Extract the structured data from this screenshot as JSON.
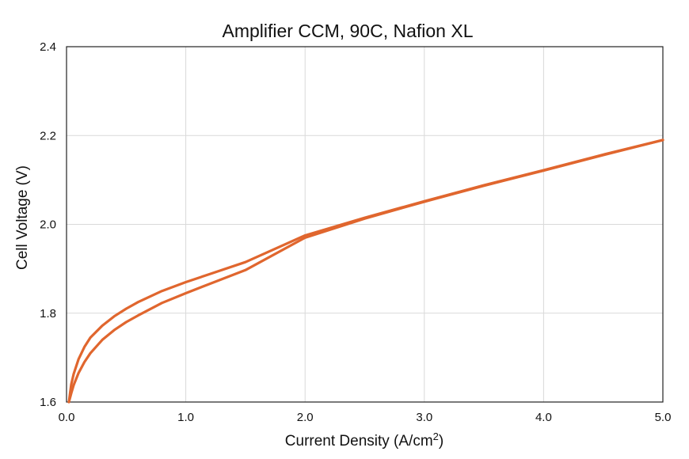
{
  "chart_data": {
    "type": "line",
    "title": "Amplifier CCM, 90C, Nafion XL",
    "xlabel": "Current Density (A/cm",
    "xlabel_sup": "2",
    "xlabel_end": ")",
    "ylabel": "Cell Voltage (V)",
    "xlim": [
      0,
      5
    ],
    "ylim": [
      1.6,
      2.4
    ],
    "xticks": [
      "0.0",
      "1.0",
      "2.0",
      "3.0",
      "4.0",
      "5.0"
    ],
    "yticks": [
      "1.6",
      "1.8",
      "2.0",
      "2.2",
      "2.4"
    ],
    "grid": true,
    "legend": "none",
    "line_color": "#e0662e",
    "series": [
      {
        "x": [
          0.02,
          0.04,
          0.06,
          0.1,
          0.15,
          0.2,
          0.3,
          0.4,
          0.5,
          0.6,
          0.8,
          1.0,
          1.2,
          1.5,
          2.0,
          2.5,
          3.0,
          3.5,
          4.0,
          4.5,
          5.0
        ],
        "y": [
          1.6,
          1.64,
          1.663,
          1.696,
          1.724,
          1.745,
          1.772,
          1.793,
          1.81,
          1.825,
          1.85,
          1.87,
          1.888,
          1.915,
          1.975,
          2.015,
          2.052,
          2.088,
          2.122,
          2.157,
          2.19
        ]
      },
      {
        "x": [
          0.02,
          0.04,
          0.06,
          0.1,
          0.15,
          0.2,
          0.3,
          0.4,
          0.5,
          0.6,
          0.8,
          1.0,
          1.2,
          1.5,
          2.0,
          2.5,
          3.0,
          3.5,
          4.0,
          4.5,
          5.0
        ],
        "y": [
          1.6,
          1.62,
          1.638,
          1.665,
          1.69,
          1.71,
          1.74,
          1.762,
          1.78,
          1.795,
          1.823,
          1.845,
          1.866,
          1.897,
          1.97,
          2.013,
          2.051,
          2.087,
          2.121,
          2.156,
          2.19
        ]
      }
    ]
  }
}
